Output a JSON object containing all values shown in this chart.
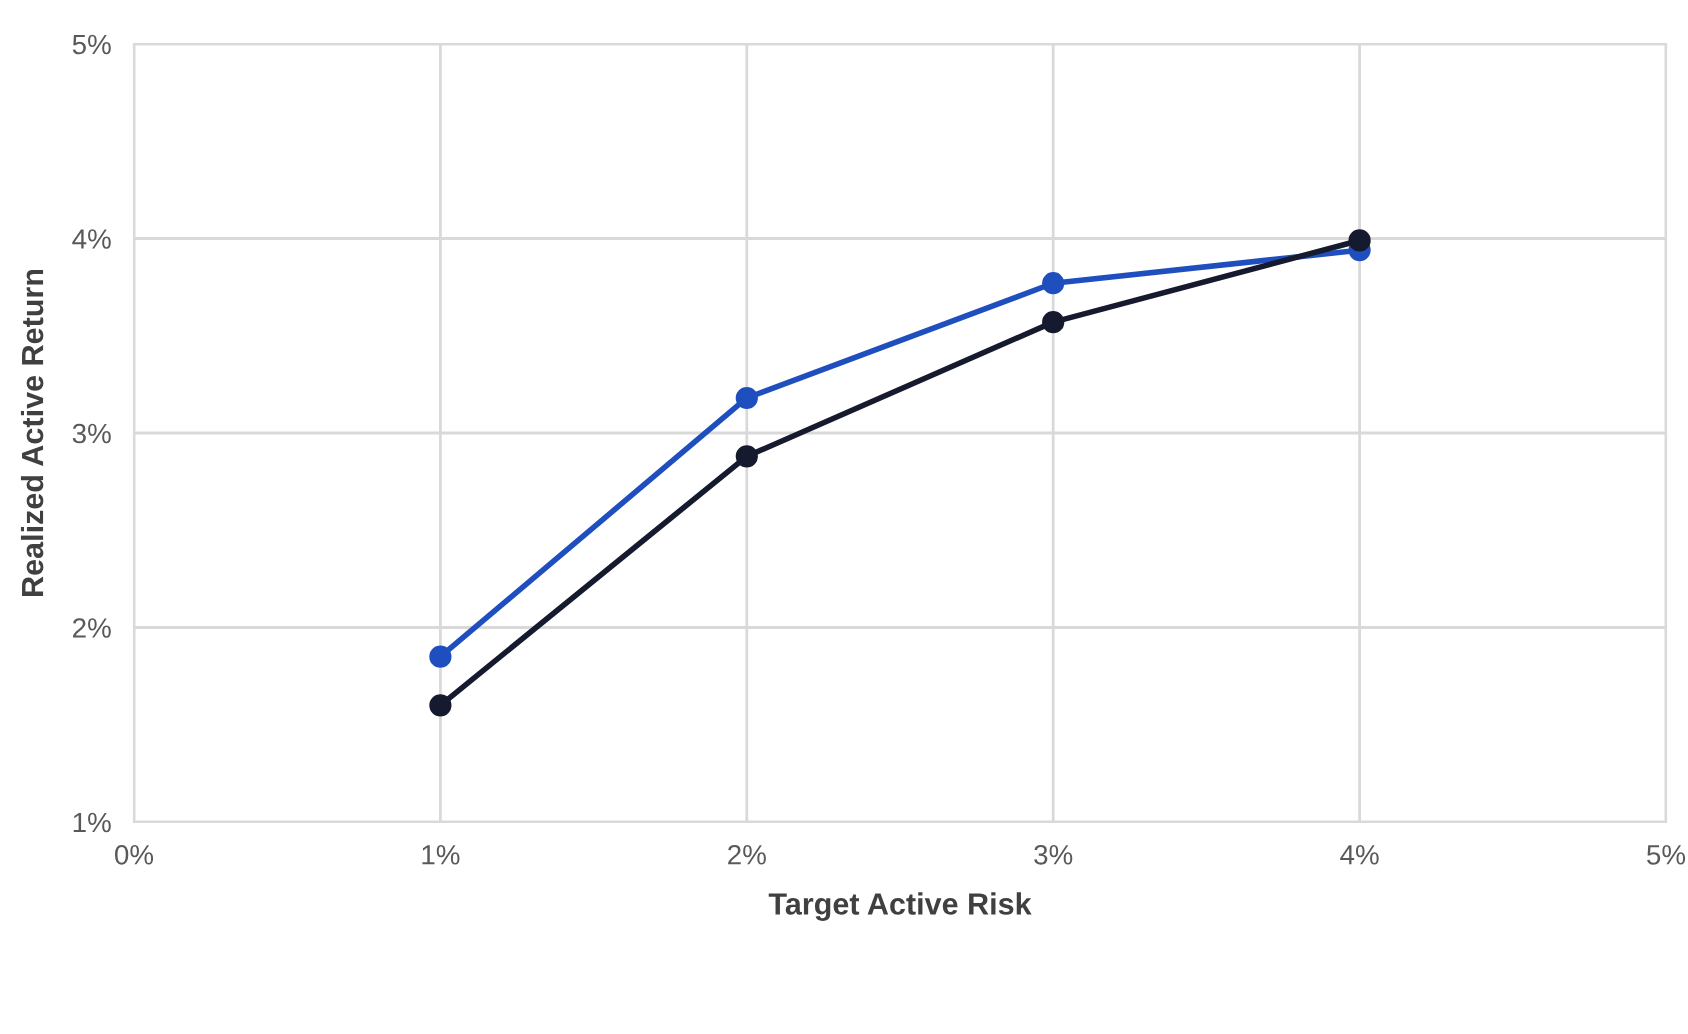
{
  "chart_data": {
    "type": "line",
    "xlabel": "Target Active Risk",
    "ylabel": "Realized Active Return",
    "x": [
      1,
      2,
      3,
      4
    ],
    "series": [
      {
        "color": "#1f4fbf",
        "values": [
          1.85,
          3.18,
          3.77,
          3.94
        ]
      },
      {
        "color": "#161a2e",
        "values": [
          1.6,
          2.88,
          3.57,
          3.99
        ]
      }
    ],
    "xlim": [
      0,
      5
    ],
    "ylim": [
      1,
      5
    ],
    "xticks": [
      {
        "value": 0,
        "label": "0%"
      },
      {
        "value": 1,
        "label": "1%"
      },
      {
        "value": 2,
        "label": "2%"
      },
      {
        "value": 3,
        "label": "3%"
      },
      {
        "value": 4,
        "label": "4%"
      },
      {
        "value": 5,
        "label": "5%"
      }
    ],
    "yticks": [
      {
        "value": 1,
        "label": "1%"
      },
      {
        "value": 2,
        "label": "2%"
      },
      {
        "value": 3,
        "label": "3%"
      },
      {
        "value": 4,
        "label": "4%"
      },
      {
        "value": 5,
        "label": "5%"
      }
    ],
    "grid": true,
    "marker": "circle",
    "line_style": "solid"
  }
}
